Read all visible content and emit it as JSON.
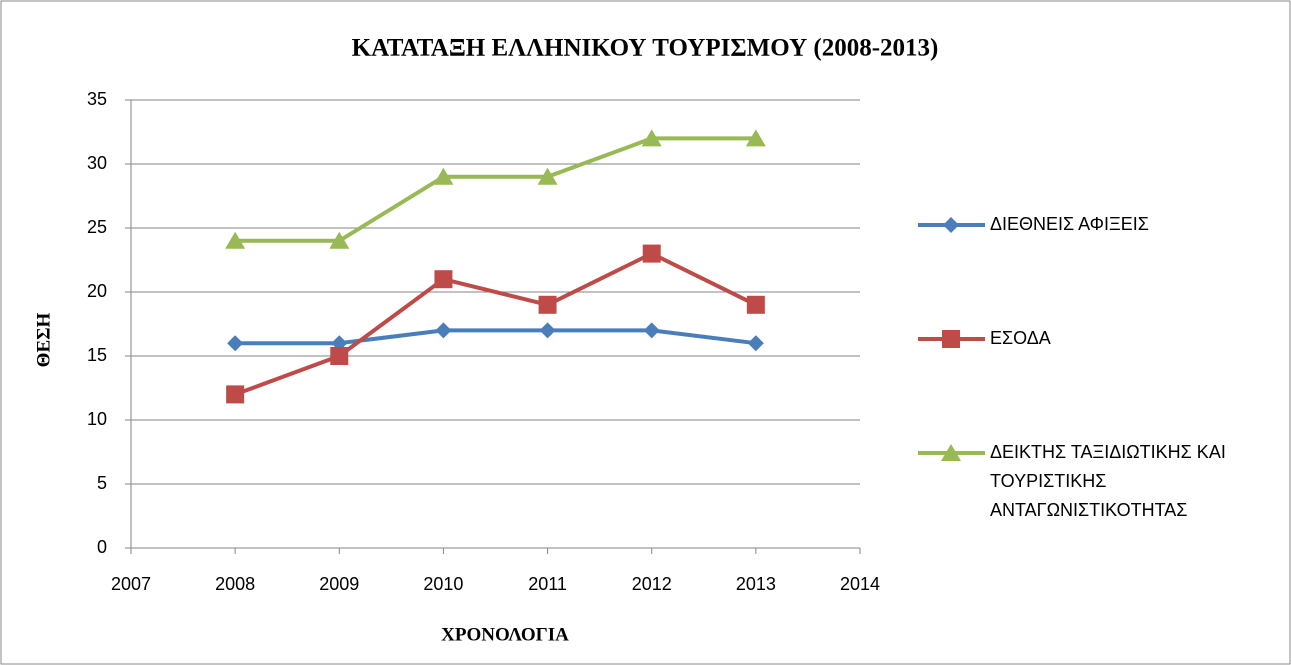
{
  "chart_data": {
    "type": "line",
    "title": "ΚΑΤΑΤΑΞΗ ΕΛΛΗΝΙΚΟΥ ΤΟΥΡΙΣΜΟΥ (2008-2013)",
    "x_label": "ΧΡΟΝΟΛΟΓΙΑ",
    "y_label": "ΘΕΣΗ",
    "x": [
      2008,
      2009,
      2010,
      2011,
      2012,
      2013
    ],
    "series": [
      {
        "name": "ΔΙΕΘΝΕΙΣ ΑΦΙΞΕΙΣ",
        "color": "#4a7ebb",
        "marker": "diamond",
        "values": [
          16,
          16,
          17,
          17,
          17,
          16
        ]
      },
      {
        "name": "ΕΣΟΔΑ",
        "color": "#be4b48",
        "marker": "square",
        "values": [
          12,
          15,
          21,
          19,
          23,
          19
        ]
      },
      {
        "name": "ΔΕΙΚΤΗΣ ΤΑΞΙΔΙΩΤΙΚΗΣ ΚΑΙ ΤΟΥΡΙΣΤΙΚΗΣ ΑΝΤΑΓΩΝΙΣΤΙΚΟΤΗΤΑΣ",
        "color": "#98b954",
        "marker": "triangle",
        "values": [
          24,
          24,
          29,
          29,
          32,
          32
        ]
      }
    ],
    "xlim": [
      2007,
      2014
    ],
    "xticks": [
      2007,
      2008,
      2009,
      2010,
      2011,
      2012,
      2013,
      2014
    ],
    "ylim": [
      0,
      35
    ],
    "yticks": [
      0,
      5,
      10,
      15,
      20,
      25,
      30,
      35
    ],
    "grid": true,
    "legend": "right"
  }
}
